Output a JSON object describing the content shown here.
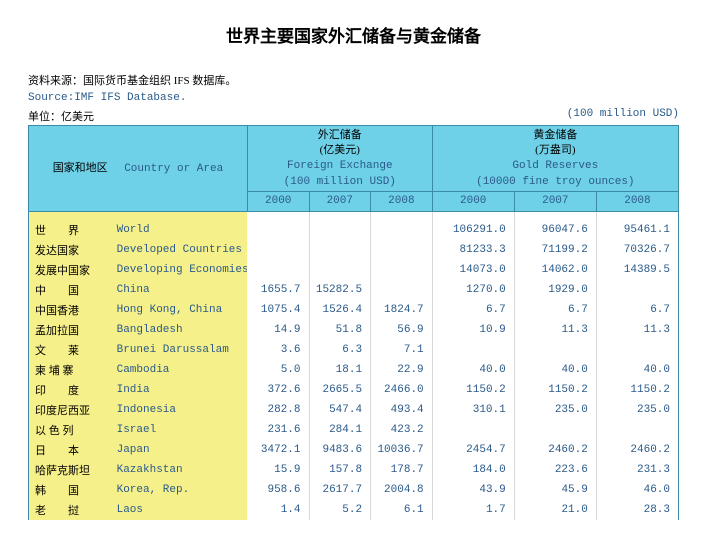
{
  "title": "世界主要国家外汇储备与黄金储备",
  "meta": {
    "source_cn": "资料来源：国际货币基金组织 IFS 数据库。",
    "source_en": "Source:IMF IFS Database.",
    "unit_cn": "单位：亿美元",
    "unit_en": "(100 million USD)"
  },
  "header": {
    "col_region_cn": "国家和地区",
    "col_region_en": "Country or Area",
    "group_fx_cn": "外汇储备",
    "group_fx_unit_cn": "(亿美元)",
    "group_fx_en": "Foreign Exchange",
    "group_fx_unit_en": "(100 million USD)",
    "group_gold_cn": "黄金储备",
    "group_gold_unit_cn": "(万盎司)",
    "group_gold_en": "Gold Reserves",
    "group_gold_unit_en": "(10000 fine troy ounces)",
    "years": [
      "2000",
      "2007",
      "2008",
      "2000",
      "2007",
      "2008"
    ]
  },
  "rows": [
    {
      "cn": "世　　界",
      "en": "World",
      "v": [
        "",
        "",
        "",
        "106291.0",
        "96047.6",
        "95461.1"
      ]
    },
    {
      "cn": "发达国家",
      "en": "Developed Countries",
      "v": [
        "",
        "",
        "",
        "81233.3",
        "71199.2",
        "70326.7"
      ]
    },
    {
      "cn": "发展中国家",
      "en": "Developing Economies",
      "v": [
        "",
        "",
        "",
        "14073.0",
        "14062.0",
        "14389.5"
      ]
    },
    {
      "cn": "中　　国",
      "en": "China",
      "v": [
        "1655.7",
        "15282.5",
        "",
        "1270.0",
        "1929.0",
        ""
      ]
    },
    {
      "cn": "中国香港",
      "en": "Hong Kong, China",
      "v": [
        "1075.4",
        "1526.4",
        "1824.7",
        "6.7",
        "6.7",
        "6.7"
      ]
    },
    {
      "cn": "孟加拉国",
      "en": "Bangladesh",
      "v": [
        "14.9",
        "51.8",
        "56.9",
        "10.9",
        "11.3",
        "11.3"
      ]
    },
    {
      "cn": "文　　莱",
      "en": "Brunei Darussalam",
      "v": [
        "3.6",
        "6.3",
        "7.1",
        "",
        "",
        ""
      ]
    },
    {
      "cn": "柬 埔 寨",
      "en": "Cambodia",
      "v": [
        "5.0",
        "18.1",
        "22.9",
        "40.0",
        "40.0",
        "40.0"
      ]
    },
    {
      "cn": "印　　度",
      "en": "India",
      "v": [
        "372.6",
        "2665.5",
        "2466.0",
        "1150.2",
        "1150.2",
        "1150.2"
      ]
    },
    {
      "cn": "印度尼西亚",
      "en": "Indonesia",
      "v": [
        "282.8",
        "547.4",
        "493.4",
        "310.1",
        "235.0",
        "235.0"
      ]
    },
    {
      "cn": "以 色 列",
      "en": "Israel",
      "v": [
        "231.6",
        "284.1",
        "423.2",
        "",
        "",
        ""
      ]
    },
    {
      "cn": "日　　本",
      "en": "Japan",
      "v": [
        "3472.1",
        "9483.6",
        "10036.7",
        "2454.7",
        "2460.2",
        "2460.2"
      ]
    },
    {
      "cn": "哈萨克斯坦",
      "en": "Kazakhstan",
      "v": [
        "15.9",
        "157.8",
        "178.7",
        "184.0",
        "223.6",
        "231.3"
      ]
    },
    {
      "cn": "韩　　国",
      "en": "Korea, Rep.",
      "v": [
        "958.6",
        "2617.7",
        "2004.8",
        "43.9",
        "45.9",
        "46.0"
      ]
    },
    {
      "cn": "老　　挝",
      "en": "Laos",
      "v": [
        "1.4",
        "5.2",
        "6.1",
        "1.7",
        "21.0",
        "28.3"
      ]
    }
  ],
  "colors": {
    "header_bg": "#6fd1e8",
    "header_border": "#3a8aa8",
    "label_bg": "#f6f08a",
    "en_text": "#2a5a8a"
  },
  "col_widths_pct": [
    12,
    20,
    9,
    9,
    9,
    12,
    12,
    12
  ]
}
